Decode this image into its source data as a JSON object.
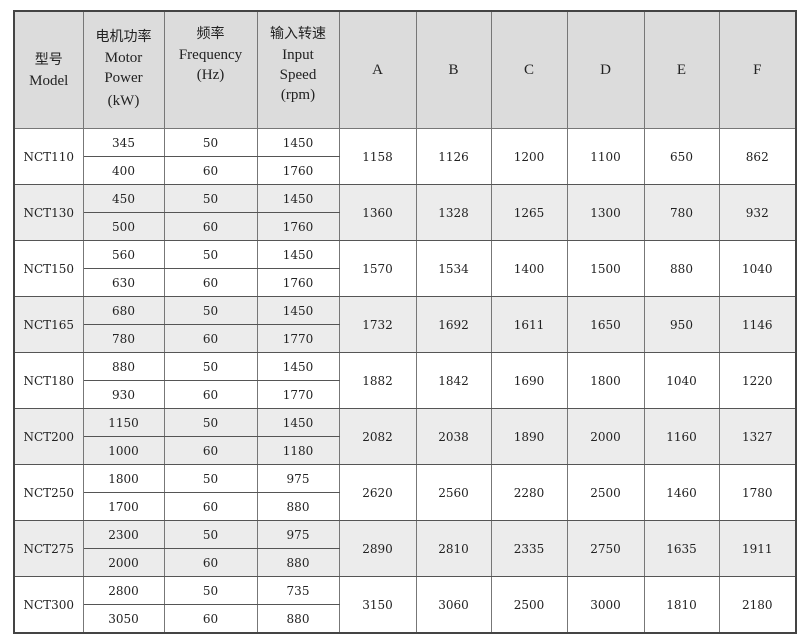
{
  "headers": {
    "model": {
      "cn": "型号",
      "en": "Model"
    },
    "power": {
      "cn": "电机功率",
      "en1": "Motor",
      "en2": "Power",
      "unit": "(kW)"
    },
    "freq": {
      "cn": "频率",
      "en1": "Frequency",
      "unit": "(Hz)"
    },
    "speed": {
      "cn": "输入转速",
      "en1": "Input",
      "en2": "Speed",
      "unit": "(rpm)"
    },
    "dims": [
      "A",
      "B",
      "C",
      "D",
      "E",
      "F"
    ]
  },
  "rows": [
    {
      "model": "NCT110",
      "variants": [
        {
          "power": "345",
          "freq": "50",
          "speed": "1450"
        },
        {
          "power": "400",
          "freq": "60",
          "speed": "1760"
        }
      ],
      "dims": [
        "1158",
        "1126",
        "1200",
        "1100",
        "650",
        "862"
      ]
    },
    {
      "model": "NCT130",
      "variants": [
        {
          "power": "450",
          "freq": "50",
          "speed": "1450"
        },
        {
          "power": "500",
          "freq": "60",
          "speed": "1760"
        }
      ],
      "dims": [
        "1360",
        "1328",
        "1265",
        "1300",
        "780",
        "932"
      ]
    },
    {
      "model": "NCT150",
      "variants": [
        {
          "power": "560",
          "freq": "50",
          "speed": "1450"
        },
        {
          "power": "630",
          "freq": "60",
          "speed": "1760"
        }
      ],
      "dims": [
        "1570",
        "1534",
        "1400",
        "1500",
        "880",
        "1040"
      ]
    },
    {
      "model": "NCT165",
      "variants": [
        {
          "power": "680",
          "freq": "50",
          "speed": "1450"
        },
        {
          "power": "780",
          "freq": "60",
          "speed": "1770"
        }
      ],
      "dims": [
        "1732",
        "1692",
        "1611",
        "1650",
        "950",
        "1146"
      ]
    },
    {
      "model": "NCT180",
      "variants": [
        {
          "power": "880",
          "freq": "50",
          "speed": "1450"
        },
        {
          "power": "930",
          "freq": "60",
          "speed": "1770"
        }
      ],
      "dims": [
        "1882",
        "1842",
        "1690",
        "1800",
        "1040",
        "1220"
      ]
    },
    {
      "model": "NCT200",
      "variants": [
        {
          "power": "1150",
          "freq": "50",
          "speed": "1450"
        },
        {
          "power": "1000",
          "freq": "60",
          "speed": "1180"
        }
      ],
      "dims": [
        "2082",
        "2038",
        "1890",
        "2000",
        "1160",
        "1327"
      ]
    },
    {
      "model": "NCT250",
      "variants": [
        {
          "power": "1800",
          "freq": "50",
          "speed": "975"
        },
        {
          "power": "1700",
          "freq": "60",
          "speed": "880"
        }
      ],
      "dims": [
        "2620",
        "2560",
        "2280",
        "2500",
        "1460",
        "1780"
      ]
    },
    {
      "model": "NCT275",
      "variants": [
        {
          "power": "2300",
          "freq": "50",
          "speed": "975"
        },
        {
          "power": "2000",
          "freq": "60",
          "speed": "880"
        }
      ],
      "dims": [
        "2890",
        "2810",
        "2335",
        "2750",
        "1635",
        "1911"
      ]
    },
    {
      "model": "NCT300",
      "variants": [
        {
          "power": "2800",
          "freq": "50",
          "speed": "735"
        },
        {
          "power": "3050",
          "freq": "60",
          "speed": "880"
        }
      ],
      "dims": [
        "3150",
        "3060",
        "2500",
        "3000",
        "1810",
        "2180"
      ]
    }
  ],
  "colors": {
    "header_bg": "#dcdcdc",
    "alt_row_bg": "#ececec",
    "border": "#777777"
  }
}
